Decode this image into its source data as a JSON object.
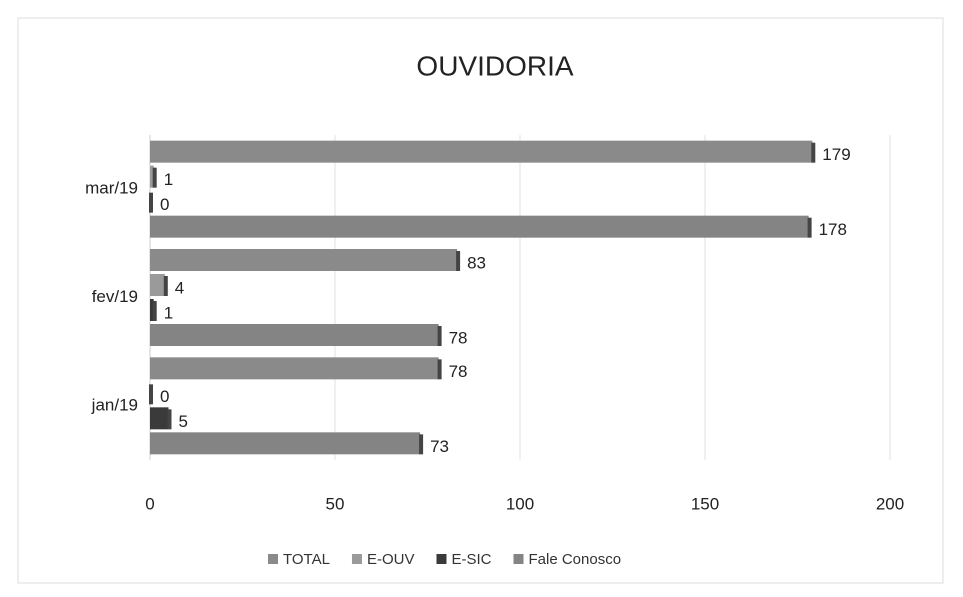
{
  "chart_data": {
    "type": "barh",
    "title": "OUVIDORIA",
    "categories": [
      "jan/19",
      "fev/19",
      "mar/19"
    ],
    "series": [
      {
        "name": "TOTAL",
        "color": "#8a8a8a",
        "values": [
          78,
          83,
          179
        ]
      },
      {
        "name": "E-OUV",
        "color": "#9a9a9a",
        "values": [
          0,
          4,
          1
        ]
      },
      {
        "name": "E-SIC",
        "color": "#3a3a3a",
        "values": [
          5,
          1,
          0
        ]
      },
      {
        "name": "Fale Conosco",
        "color": "#848484",
        "values": [
          73,
          78,
          178
        ]
      }
    ],
    "xlim": [
      0,
      200
    ],
    "xticks": [
      0,
      50,
      100,
      150,
      200
    ],
    "grid": true,
    "legend": "bottom"
  }
}
